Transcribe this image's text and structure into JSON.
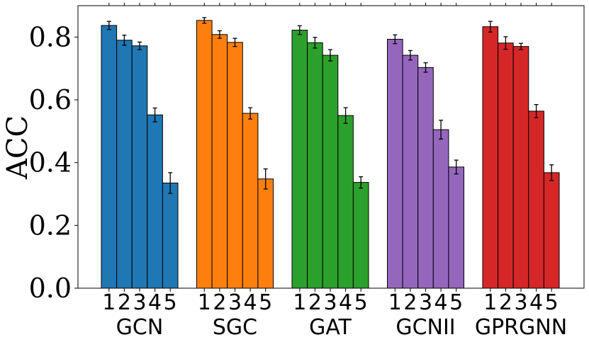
{
  "chart_data": {
    "type": "bar",
    "title": "",
    "xlabel": "",
    "ylabel": "ACC",
    "ylim": [
      0,
      0.9
    ],
    "yticks": [
      "0.0",
      "0.2",
      "0.4",
      "0.6",
      "0.8"
    ],
    "ytick_values": [
      0.0,
      0.2,
      0.4,
      0.6,
      0.8
    ],
    "grid": false,
    "groups": [
      {
        "name": "GCN",
        "color": "#1f77b4",
        "labels": [
          "1",
          "2",
          "3",
          "4",
          "5"
        ],
        "values": [
          0.837,
          0.79,
          0.772,
          0.552,
          0.335
        ],
        "errors": [
          0.013,
          0.016,
          0.012,
          0.022,
          0.033
        ]
      },
      {
        "name": "SGC",
        "color": "#ff7f0e",
        "labels": [
          "1",
          "2",
          "3",
          "4",
          "5"
        ],
        "values": [
          0.853,
          0.808,
          0.783,
          0.557,
          0.348
        ],
        "errors": [
          0.009,
          0.012,
          0.013,
          0.018,
          0.032
        ]
      },
      {
        "name": "GAT",
        "color": "#2ca02c",
        "labels": [
          "1",
          "2",
          "3",
          "4",
          "5"
        ],
        "values": [
          0.822,
          0.782,
          0.742,
          0.55,
          0.337
        ],
        "errors": [
          0.014,
          0.017,
          0.018,
          0.025,
          0.018
        ]
      },
      {
        "name": "GCNII",
        "color": "#9467bd",
        "labels": [
          "1",
          "2",
          "3",
          "4",
          "5"
        ],
        "values": [
          0.793,
          0.742,
          0.703,
          0.505,
          0.386
        ],
        "errors": [
          0.014,
          0.015,
          0.015,
          0.03,
          0.022
        ]
      },
      {
        "name": "GPRGNN",
        "color": "#d62728",
        "labels": [
          "1",
          "2",
          "3",
          "4",
          "5"
        ],
        "values": [
          0.833,
          0.781,
          0.77,
          0.564,
          0.368
        ],
        "errors": [
          0.017,
          0.02,
          0.01,
          0.021,
          0.025
        ]
      }
    ]
  }
}
